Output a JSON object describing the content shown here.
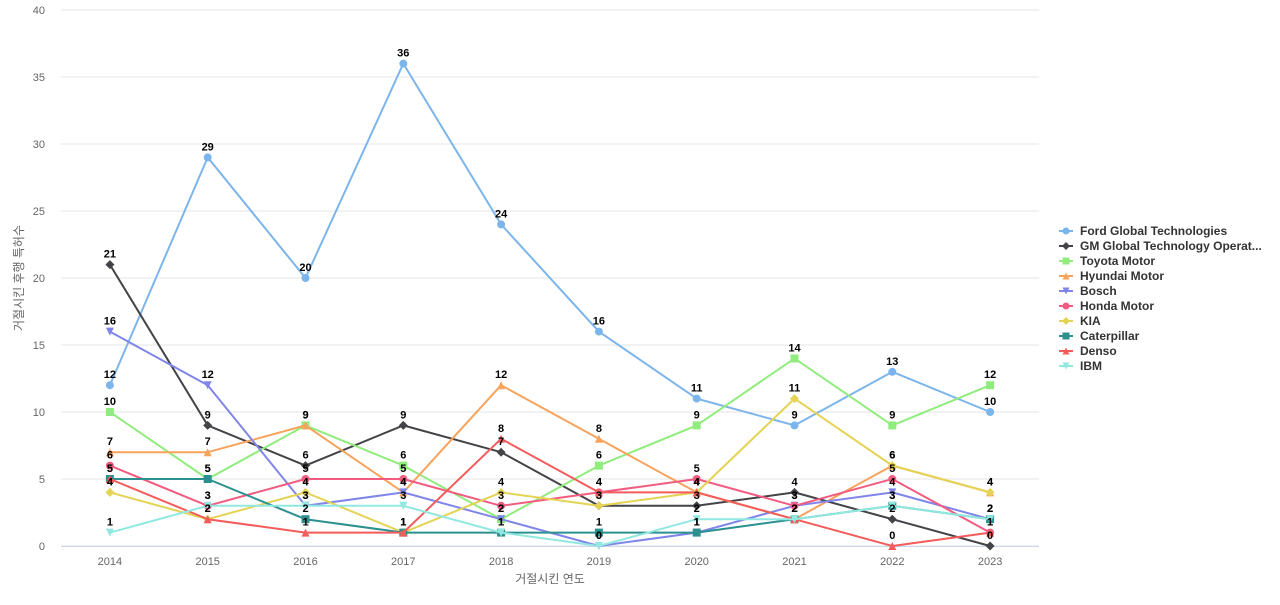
{
  "chart_data": {
    "type": "line",
    "title": "",
    "xlabel": "거절시킨 연도",
    "ylabel": "거절시킨 후행 특허수",
    "ylim": [
      0,
      40
    ],
    "yticks": [
      0,
      5,
      10,
      15,
      20,
      25,
      30,
      35,
      40
    ],
    "grid": true,
    "legend_position": "right",
    "categories": [
      "2014",
      "2015",
      "2016",
      "2017",
      "2018",
      "2019",
      "2020",
      "2021",
      "2022",
      "2023"
    ],
    "series": [
      {
        "name": "Ford Global Technologies",
        "color": "#7cb5ec",
        "marker": "circle",
        "values": [
          12,
          29,
          20,
          36,
          24,
          16,
          11,
          9,
          13,
          10
        ]
      },
      {
        "name": "GM Global Technology Operat...",
        "color": "#434348",
        "marker": "diamond",
        "values": [
          21,
          9,
          6,
          9,
          7,
          3,
          3,
          4,
          2,
          0
        ]
      },
      {
        "name": "Toyota Motor",
        "color": "#90ed7d",
        "marker": "square",
        "values": [
          10,
          5,
          9,
          6,
          2,
          6,
          9,
          14,
          9,
          12
        ]
      },
      {
        "name": "Hyundai Motor",
        "color": "#f7a35c",
        "marker": "triangle",
        "values": [
          7,
          7,
          9,
          4,
          12,
          8,
          4,
          2,
          6,
          4
        ]
      },
      {
        "name": "Bosch",
        "color": "#8085e9",
        "marker": "triangle-down",
        "values": [
          16,
          12,
          3,
          4,
          2,
          0,
          1,
          3,
          4,
          2
        ]
      },
      {
        "name": "Honda Motor",
        "color": "#f15c80",
        "marker": "circle",
        "values": [
          6,
          3,
          5,
          5,
          3,
          4,
          5,
          3,
          5,
          1
        ]
      },
      {
        "name": "KIA",
        "color": "#e4d354",
        "marker": "diamond",
        "values": [
          4,
          2,
          4,
          1,
          4,
          3,
          4,
          11,
          6,
          4
        ]
      },
      {
        "name": "Caterpillar",
        "color": "#2b908f",
        "marker": "square",
        "values": [
          5,
          5,
          2,
          1,
          1,
          1,
          1,
          2,
          3,
          2
        ]
      },
      {
        "name": "Denso",
        "color": "#f45b5b",
        "marker": "triangle",
        "values": [
          5,
          2,
          1,
          1,
          8,
          4,
          4,
          2,
          0,
          1
        ]
      },
      {
        "name": "IBM",
        "color": "#91e8e1",
        "marker": "triangle-down",
        "values": [
          1,
          3,
          3,
          3,
          1,
          0,
          2,
          2,
          3,
          2
        ]
      }
    ]
  }
}
